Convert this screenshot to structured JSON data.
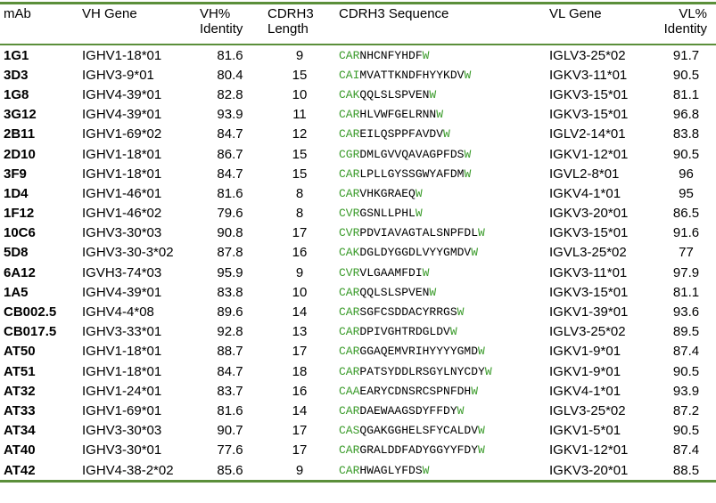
{
  "table": {
    "header": [
      "mAb",
      "VH Gene",
      "VH%\nIdentity",
      "CDRH3\nLength",
      "CDRH3 Sequence",
      "VL Gene",
      "VL%\nIdentity"
    ],
    "rows": [
      [
        "1G1",
        "IGHV1-18*01",
        "81.6",
        "9",
        "CARNHCNFYHDFW",
        "IGLV3-25*02",
        "91.7"
      ],
      [
        "3D3",
        "IGHV3-9*01",
        "80.4",
        "15",
        "CAIMVATTKNDFHYYKDVW",
        "IGKV3-11*01",
        "90.5"
      ],
      [
        "1G8",
        "IGHV4-39*01",
        "82.8",
        "10",
        "CAKQQLSLSPVENW",
        "IGKV3-15*01",
        "81.1"
      ],
      [
        "3G12",
        "IGHV4-39*01",
        "93.9",
        "11",
        "CARHLVWFGELRNNW",
        "IGKV3-15*01",
        "96.8"
      ],
      [
        "2B11",
        "IGHV1-69*02",
        "84.7",
        "12",
        "CAREILQSPPFAVDVW",
        "IGLV2-14*01",
        "83.8"
      ],
      [
        "2D10",
        "IGHV1-18*01",
        "86.7",
        "15",
        "CGRDMLGVVQAVAGPFDSW",
        "IGKV1-12*01",
        "90.5"
      ],
      [
        "3F9",
        "IGHV1-18*01",
        "84.7",
        "15",
        "CARLPLLGYSSGWYAFDMW",
        "IGVL2-8*01",
        "96"
      ],
      [
        "1D4",
        "IGHV1-46*01",
        "81.6",
        "8",
        "CARVHKGRAEQW",
        "IGKV4-1*01",
        "95"
      ],
      [
        "1F12",
        "IGHV1-46*02",
        "79.6",
        "8",
        "CVRGSNLLPHLW",
        "IGKV3-20*01",
        "86.5"
      ],
      [
        "10C6",
        "IGHV3-30*03",
        "90.8",
        "17",
        "CVRPDVIAVAGTALSNPFDLW",
        "IGKV3-15*01",
        "91.6"
      ],
      [
        "5D8",
        "IGHV3-30-3*02",
        "87.8",
        "16",
        "CAKDGLDYGGDLVYYGMDVW",
        "IGVL3-25*02",
        "77"
      ],
      [
        "6A12",
        "IGVH3-74*03",
        "95.9",
        "9",
        "CVRVLGAAMFDIW",
        "IGKV3-11*01",
        "97.9"
      ],
      [
        "1A5",
        "IGHV4-39*01",
        "83.8",
        "10",
        "CARQQLSLSPVENW",
        "IGKV3-15*01",
        "81.1"
      ],
      [
        "CB002.5",
        "IGHV4-4*08",
        "89.6",
        "14",
        "CARSGFCSDDACYRRGSW",
        "IGKV1-39*01",
        "93.6"
      ],
      [
        "CB017.5",
        "IGHV3-33*01",
        "92.8",
        "13",
        "CARDPIVGHTRDGLDVW",
        "IGLV3-25*02",
        "89.5"
      ],
      [
        "AT50",
        "IGHV1-18*01",
        "88.7",
        "17",
        "CARGGAQEMVRIHYYYYGMDW",
        "IGKV1-9*01",
        "87.4"
      ],
      [
        "AT51",
        "IGHV1-18*01",
        "84.7",
        "18",
        "CARPATSYDDLRSGYLNYCDYW",
        "IGKV1-9*01",
        "90.5"
      ],
      [
        "AT32",
        "IGHV1-24*01",
        "83.7",
        "16",
        "CAAEARYCDNSRCSPNFDHW",
        "IGKV4-1*01",
        "93.9"
      ],
      [
        "AT33",
        "IGHV1-69*01",
        "81.6",
        "14",
        "CARDAEWAAGSDYFFDYW",
        "IGLV3-25*02",
        "87.2"
      ],
      [
        "AT34",
        "IGHV3-30*03",
        "90.7",
        "17",
        "CASQGAKGGHELSFYCALDVW",
        "IGKV1-5*01",
        "90.5"
      ],
      [
        "AT40",
        "IGHV3-30*01",
        "77.6",
        "17",
        "CARGRALDDFADYGGYYFDYW",
        "IGKV1-12*01",
        "87.4"
      ],
      [
        "AT42",
        "IGHV4-38-2*02",
        "85.6",
        "9",
        "CARHWAGLYFDSW",
        "IGKV3-20*01",
        "88.5"
      ]
    ]
  }
}
